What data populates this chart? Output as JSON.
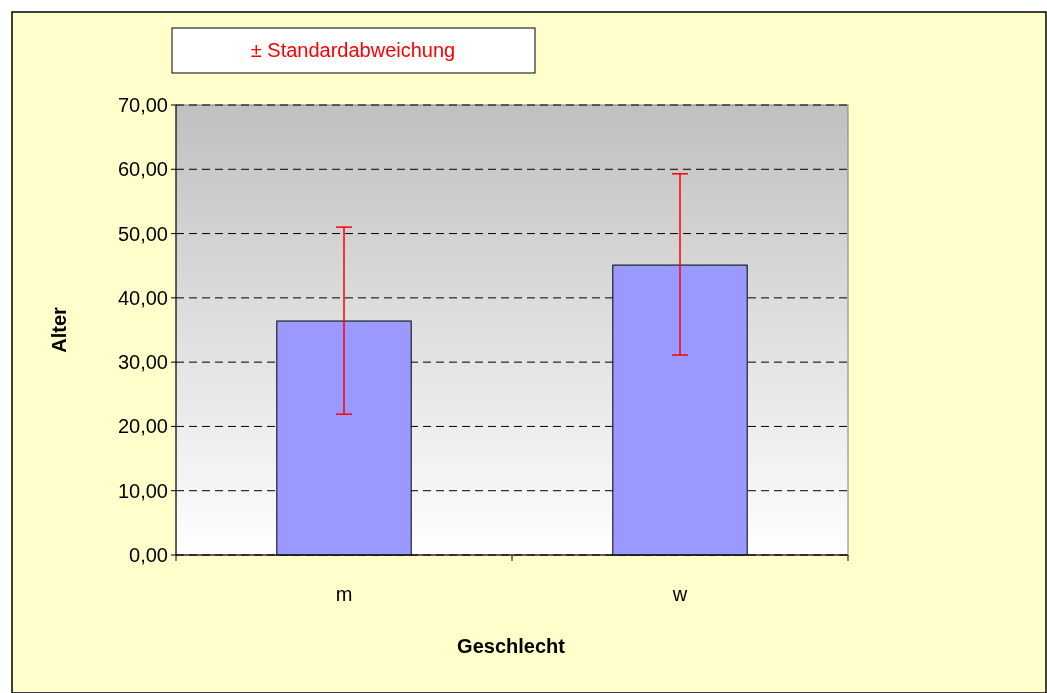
{
  "chart_data": {
    "type": "bar",
    "xlabel": "Geschlecht",
    "ylabel": "Alter",
    "legend_title": "± Standardabweichung",
    "categories": [
      "m",
      "w"
    ],
    "series": [
      {
        "color": "#9999ff",
        "values": [
          36.4,
          45.1
        ],
        "errors": [
          [
            21.9,
            51.0
          ],
          [
            31.1,
            59.3
          ]
        ]
      }
    ],
    "ylim": [
      0,
      70
    ],
    "yticks": [
      {
        "value": 0,
        "label": "0,00"
      },
      {
        "value": 10,
        "label": "10,00"
      },
      {
        "value": 20,
        "label": "20,00"
      },
      {
        "value": 30,
        "label": "30,00"
      },
      {
        "value": 40,
        "label": "40,00"
      },
      {
        "value": 50,
        "label": "50,00"
      },
      {
        "value": 60,
        "label": "60,00"
      },
      {
        "value": 70,
        "label": "70,00"
      }
    ],
    "grid": "y"
  }
}
